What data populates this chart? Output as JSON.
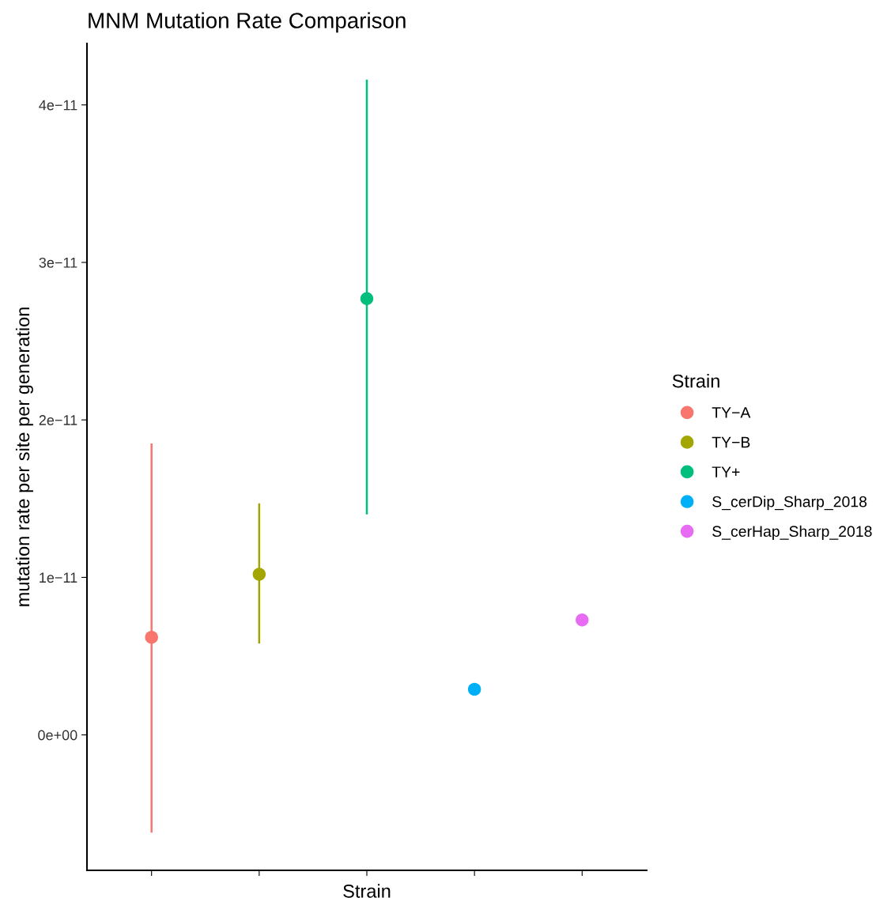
{
  "chart_data": {
    "type": "scatter",
    "title": "MNM Mutation Rate Comparison",
    "xlabel": "Strain",
    "ylabel": "mutation rate per site per generation",
    "legend_title": "Strain",
    "categories": [
      null,
      null,
      null,
      null,
      null
    ],
    "series": [
      {
        "name": "TY−A",
        "color": "#f8766d",
        "values": [
          6.2e-12,
          null,
          null,
          null,
          null
        ],
        "errors": [
          [
            -6.2e-12,
            1.85e-11
          ],
          null,
          null,
          null,
          null
        ]
      },
      {
        "name": "TY−B",
        "color": "#a3a500",
        "values": [
          null,
          1.02e-11,
          null,
          null,
          null
        ],
        "errors": [
          null,
          [
            5.8e-12,
            1.47e-11
          ],
          null,
          null,
          null
        ]
      },
      {
        "name": "TY+",
        "color": "#00bf7d",
        "values": [
          null,
          null,
          2.77e-11,
          null,
          null
        ],
        "errors": [
          null,
          null,
          [
            1.4e-11,
            4.16e-11
          ],
          null,
          null
        ]
      },
      {
        "name": "S_cerDip_Sharp_2018",
        "color": "#00b0f6",
        "values": [
          null,
          null,
          null,
          2.9e-12,
          null
        ]
      },
      {
        "name": "S_cerHap_Sharp_2018",
        "color": "#e76bf3",
        "values": [
          null,
          null,
          null,
          null,
          7.3e-12
        ]
      }
    ],
    "ylim": [
      -8.6e-12,
      4.39e-11
    ],
    "yticks": [
      {
        "value": 0,
        "label": "0e+00"
      },
      {
        "value": 1e-11,
        "label": "1e−11"
      },
      {
        "value": 2e-11,
        "label": "2e−11"
      },
      {
        "value": 3e-11,
        "label": "3e−11"
      },
      {
        "value": 4e-11,
        "label": "4e−11"
      }
    ],
    "marker": "circle",
    "legend": "right",
    "grid": false
  }
}
